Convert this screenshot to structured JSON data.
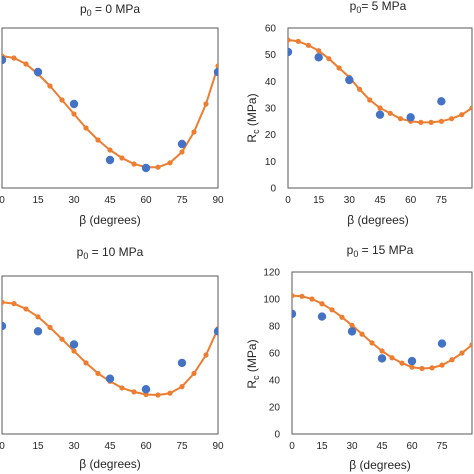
{
  "colors": {
    "measured": "#4472c4",
    "fitted": "#ed7d31",
    "frame": "#595959",
    "tick_text": "#262626"
  },
  "chart_data": [
    {
      "type": "scatter",
      "title": "p0 = 0 MPa",
      "title_parts": {
        "p": "p",
        "sub": "0",
        "rest": " = 0 MPa"
      },
      "xlabel": "β (degrees)",
      "ylabel": "",
      "x_ticks": [
        "0",
        "15",
        "30",
        "45",
        "60",
        "75",
        "90"
      ],
      "y_ticks": [],
      "xlim": [
        0,
        90
      ],
      "ylim": [
        20,
        60
      ],
      "grid": false,
      "series": [
        {
          "kind": "measured",
          "x": [
            0,
            15,
            30,
            45,
            60,
            75,
            90
          ],
          "y": [
            52,
            49,
            41,
            27,
            25,
            31,
            49
          ]
        },
        {
          "kind": "fitted",
          "x": [
            0,
            5,
            10,
            15,
            20,
            25,
            30,
            35,
            40,
            45,
            50,
            55,
            60,
            65,
            70,
            75,
            80,
            85,
            90
          ],
          "y": [
            53,
            52.5,
            51,
            48.5,
            45.5,
            42,
            38.5,
            35,
            32,
            29.5,
            27.5,
            26,
            25.2,
            25.2,
            26.3,
            29,
            34,
            41,
            50.5
          ]
        }
      ]
    },
    {
      "type": "scatter",
      "title": "p0 = 5 MPa",
      "title_parts": {
        "p": "p",
        "sub": "0",
        "rest": "= 5 MPa"
      },
      "xlabel": "β (degrees)",
      "ylabel": "Rc (MPa)",
      "ylabel_parts": {
        "r": "R",
        "sub": "c",
        "rest": " (MPa)"
      },
      "x_ticks": [
        "0",
        "15",
        "30",
        "45",
        "60",
        "75"
      ],
      "y_ticks": [
        "0",
        "10",
        "20",
        "30",
        "40",
        "50",
        "60"
      ],
      "xlim": [
        0,
        90
      ],
      "ylim": [
        0,
        60
      ],
      "grid": false,
      "series": [
        {
          "kind": "measured",
          "x": [
            0,
            15,
            30,
            45,
            60,
            75
          ],
          "y": [
            51,
            49,
            40.5,
            27.5,
            26.5,
            32.5
          ]
        },
        {
          "kind": "fitted",
          "x": [
            0,
            5,
            10,
            15,
            20,
            25,
            30,
            35,
            40,
            45,
            50,
            55,
            60,
            65,
            70,
            75,
            80,
            85,
            90
          ],
          "y": [
            55.5,
            55,
            53.5,
            51.5,
            48.5,
            45,
            41.5,
            37,
            33,
            30,
            28,
            26,
            25,
            24.6,
            24.6,
            25,
            26,
            27.5,
            30
          ]
        }
      ]
    },
    {
      "type": "scatter",
      "title": "p0 = 10 MPa",
      "title_parts": {
        "p": "p",
        "sub": "0",
        "rest": " = 10 MPa"
      },
      "xlabel": "β (degrees)",
      "ylabel": "",
      "x_ticks": [
        "0",
        "15",
        "30",
        "45",
        "60",
        "75",
        "90"
      ],
      "y_ticks": [],
      "xlim": [
        0,
        90
      ],
      "ylim": [
        30,
        90
      ],
      "grid": false,
      "series": [
        {
          "kind": "measured",
          "x": [
            0,
            15,
            30,
            45,
            60,
            75,
            90
          ],
          "y": [
            71,
            69,
            64,
            51,
            47,
            57,
            69
          ]
        },
        {
          "kind": "fitted",
          "x": [
            0,
            5,
            10,
            15,
            20,
            25,
            30,
            35,
            40,
            45,
            50,
            55,
            60,
            65,
            70,
            75,
            80,
            85,
            90
          ],
          "y": [
            80,
            79.5,
            77.5,
            74.5,
            70.5,
            66,
            61.5,
            57,
            53,
            50,
            47.5,
            46,
            45,
            44.8,
            45.5,
            48,
            53,
            60,
            70
          ]
        }
      ]
    },
    {
      "type": "scatter",
      "title": "p0 = 15 MPa",
      "title_parts": {
        "p": "p",
        "sub": "0",
        "rest": " = 15 MPa"
      },
      "xlabel": "β (degrees)",
      "ylabel": "Rc (MPa)",
      "ylabel_parts": {
        "r": "R",
        "sub": "c",
        "rest": " (MPa)"
      },
      "x_ticks": [
        "0",
        "15",
        "30",
        "45",
        "60",
        "75"
      ],
      "y_ticks": [
        "0",
        "20",
        "40",
        "60",
        "80",
        "100",
        "120"
      ],
      "xlim": [
        0,
        90
      ],
      "ylim": [
        0,
        120
      ],
      "grid": false,
      "series": [
        {
          "kind": "measured",
          "x": [
            0,
            15,
            30,
            45,
            60,
            75
          ],
          "y": [
            89,
            87,
            76,
            56,
            54,
            67
          ]
        },
        {
          "kind": "fitted",
          "x": [
            0,
            5,
            10,
            15,
            20,
            25,
            30,
            35,
            40,
            45,
            50,
            55,
            60,
            65,
            70,
            75,
            80,
            85,
            90
          ],
          "y": [
            102.5,
            102,
            100,
            96.5,
            92,
            86.5,
            80.5,
            74,
            67.5,
            61.5,
            56.5,
            52.5,
            49.5,
            48.5,
            49,
            51,
            55,
            60,
            66
          ]
        }
      ]
    }
  ]
}
